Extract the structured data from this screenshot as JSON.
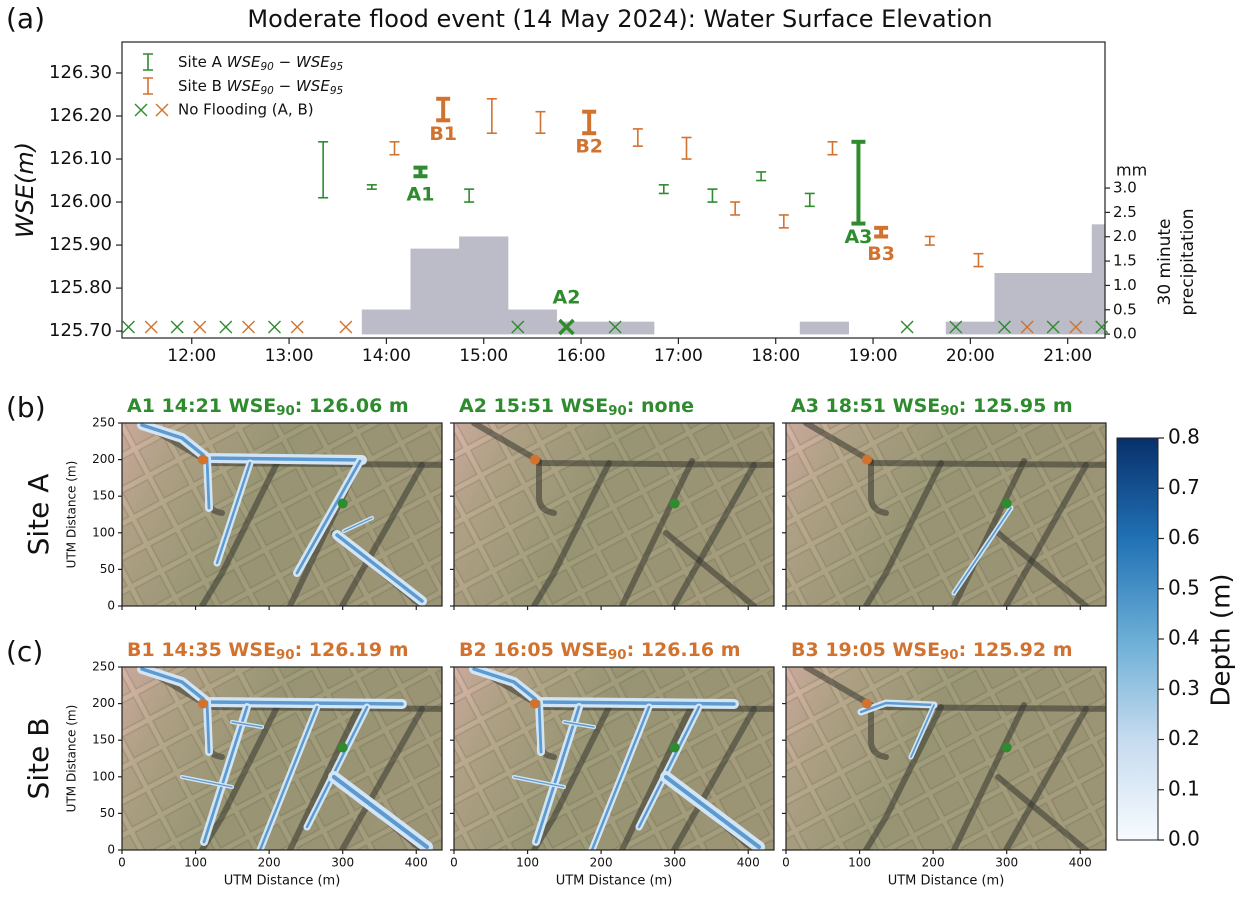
{
  "chart_data": [
    {
      "type": "errorbar",
      "panel_label": "(a)",
      "title": "Moderate flood event (14 May 2024): Water Surface Elevation",
      "ylabel": "WSE(m)",
      "y2label": [
        "30 minute",
        "precipitation"
      ],
      "y2unit": "mm",
      "xlim": [
        "11:17",
        "21:23"
      ],
      "xticks": [
        "12:00",
        "13:00",
        "14:00",
        "15:00",
        "16:00",
        "17:00",
        "18:00",
        "19:00",
        "20:00",
        "21:00"
      ],
      "ylim": [
        125.684,
        126.372
      ],
      "yticks": [
        {
          "value": 125.7,
          "label": "125.70"
        },
        {
          "value": 125.8,
          "label": "125.80"
        },
        {
          "value": 125.9,
          "label": "125.90"
        },
        {
          "value": 126.0,
          "label": "126.00"
        },
        {
          "value": 126.1,
          "label": "126.10"
        },
        {
          "value": 126.2,
          "label": "126.20"
        },
        {
          "value": 126.3,
          "label": "126.30"
        }
      ],
      "y2lim": [
        -0.08,
        6.0
      ],
      "y2ticks": [
        {
          "value": 0,
          "label": "0.0"
        },
        {
          "value": 0.5,
          "label": "0.5"
        },
        {
          "value": 1,
          "label": "1.0"
        },
        {
          "value": 1.5,
          "label": "1.5"
        },
        {
          "value": 2,
          "label": "2.0"
        },
        {
          "value": 2.5,
          "label": "2.5"
        },
        {
          "value": 3,
          "label": "3.0"
        }
      ],
      "series": [
        {
          "name": "Site A WSE90 − WSE95",
          "color": "#2e8b2e",
          "x": [
            "13:21",
            "13:51",
            "14:21",
            "14:51",
            "16:51",
            "17:21",
            "17:51",
            "18:21",
            "18:51"
          ],
          "low": [
            126.01,
            126.03,
            126.06,
            126.0,
            126.02,
            126.0,
            126.05,
            125.99,
            125.95
          ],
          "high": [
            126.14,
            126.04,
            126.08,
            126.03,
            126.04,
            126.03,
            126.07,
            126.02,
            126.14
          ]
        },
        {
          "name": "Site B WSE90 − WSE95",
          "color": "#d2722f",
          "x": [
            "14:05",
            "14:35",
            "15:05",
            "15:35",
            "16:05",
            "16:35",
            "17:05",
            "17:35",
            "18:05",
            "18:35",
            "19:05",
            "19:35",
            "20:05"
          ],
          "low": [
            126.11,
            126.19,
            126.16,
            126.16,
            126.16,
            126.13,
            126.1,
            125.97,
            125.94,
            126.11,
            125.92,
            125.9,
            125.85
          ],
          "high": [
            126.14,
            126.24,
            126.24,
            126.21,
            126.21,
            126.17,
            126.15,
            126.0,
            125.97,
            126.14,
            125.94,
            125.92,
            125.88
          ]
        }
      ],
      "no_flooding": {
        "name": "No Flooding (A, B)",
        "colors": [
          "#2e8b2e",
          "#d2722f"
        ],
        "x_a": [
          "11:21",
          "11:51",
          "12:21",
          "12:51",
          "15:21",
          "15:51",
          "16:21",
          "19:21",
          "19:51",
          "20:21",
          "20:51",
          "21:21"
        ],
        "x_b": [
          "11:35",
          "12:05",
          "12:35",
          "13:05",
          "13:35",
          "20:35",
          "21:05"
        ]
      },
      "precipitation": {
        "type": "histogram",
        "axis": "y2",
        "color": "#bcbbc8",
        "bins": [
          "13:45",
          "14:15",
          "14:45",
          "15:15",
          "15:45",
          "16:15",
          "16:45",
          "17:15",
          "17:45",
          "18:15",
          "18:45",
          "19:15",
          "19:45",
          "20:15",
          "20:45",
          "21:15",
          "21:45"
        ],
        "values": [
          0.5,
          1.75,
          2.0,
          0.5,
          0.25,
          0.25,
          0,
          0,
          0,
          0.25,
          0,
          0,
          0.25,
          1.25,
          1.25,
          2.25
        ]
      },
      "annotations": [
        "A1",
        "A2",
        "A3",
        "B1",
        "B2",
        "B3"
      ]
    },
    {
      "type": "map-grid",
      "xlabel": "UTM Distance (m)",
      "ylabel": "UTM Distance (m)",
      "xlim": [
        0,
        435
      ],
      "ylim": [
        0,
        250
      ],
      "xticks": [
        0,
        100,
        200,
        300,
        400
      ],
      "yticks": [
        0,
        50,
        100,
        150,
        200,
        250
      ],
      "site_a_location": [
        300,
        140
      ],
      "site_b_location": [
        110,
        200
      ],
      "rows": [
        {
          "panel_label": "(b)",
          "row_label": "Site A",
          "color": "#2e8b2e",
          "panels": [
            {
              "title": "A1  14:21 WSE90: 126.06 m"
            },
            {
              "title": "A2  15:51 WSE90: none"
            },
            {
              "title": "A3  18:51 WSE90: 125.95 m"
            }
          ]
        },
        {
          "panel_label": "(c)",
          "row_label": "Site B",
          "color": "#d2722f",
          "panels": [
            {
              "title": "B1  14:35 WSE90: 126.19 m"
            },
            {
              "title": "B2  16:05 WSE90: 126.16 m"
            },
            {
              "title": "B3  19:05 WSE90: 125.92 m"
            }
          ]
        }
      ],
      "colorbar": {
        "label": "Depth (m)",
        "lim": [
          0,
          0.8
        ],
        "ticks": [
          {
            "value": 0,
            "label": "0.0"
          },
          {
            "value": 0.1,
            "label": "0.1"
          },
          {
            "value": 0.2,
            "label": "0.2"
          },
          {
            "value": 0.3,
            "label": "0.3"
          },
          {
            "value": 0.4,
            "label": "0.4"
          },
          {
            "value": 0.5,
            "label": "0.5"
          },
          {
            "value": 0.6,
            "label": "0.6"
          },
          {
            "value": 0.7,
            "label": "0.7"
          },
          {
            "value": 0.8,
            "label": "0.8"
          }
        ]
      }
    }
  ]
}
